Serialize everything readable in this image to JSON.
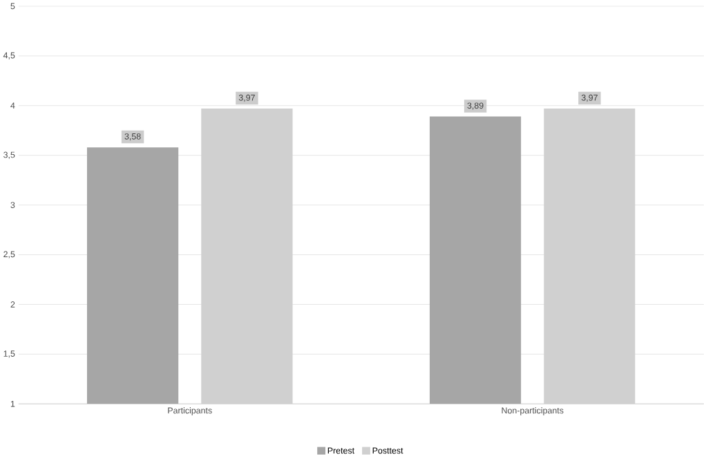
{
  "chart_data": {
    "type": "bar",
    "categories": [
      "Participants",
      "Non-participants"
    ],
    "series": [
      {
        "name": "Pretest",
        "color": "#a6a6a6",
        "values": [
          3.58,
          3.89
        ],
        "value_labels": [
          "3,58",
          "3,89"
        ]
      },
      {
        "name": "Posttest",
        "color": "#d0d0d0",
        "values": [
          3.97,
          3.97
        ],
        "value_labels": [
          "3,97",
          "3,97"
        ]
      }
    ],
    "ylim": [
      1,
      5
    ],
    "yticks": [
      1,
      {
        "value": 1.5,
        "label": "1,5"
      },
      2,
      {
        "value": 2.5,
        "label": "2,5"
      },
      3,
      {
        "value": 3.5,
        "label": "3,5"
      },
      4,
      {
        "value": 4.5,
        "label": "4,5"
      },
      5
    ],
    "grid": "y",
    "legend": "bottom"
  }
}
